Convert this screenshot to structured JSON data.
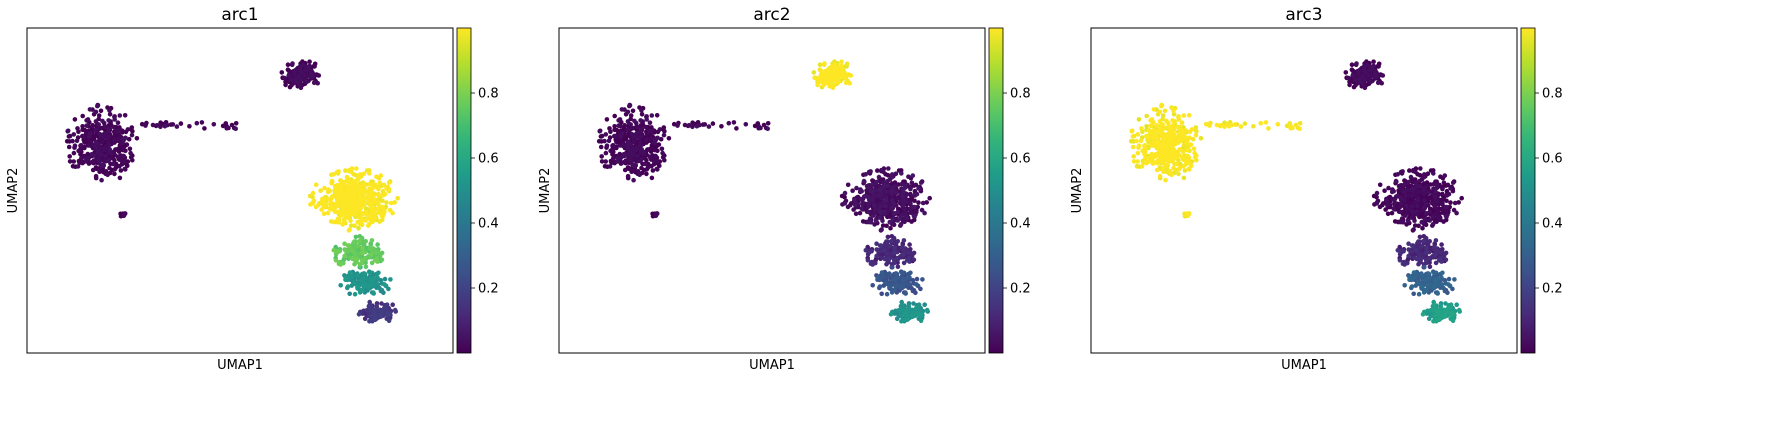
{
  "chart_data": [
    {
      "type": "scatter",
      "title": "arc1",
      "xlabel": "UMAP1",
      "ylabel": "UMAP2",
      "colorbar": {
        "ticks": [
          0.2,
          0.4,
          0.6,
          0.8
        ],
        "range": [
          0.0,
          1.0
        ],
        "colormap": "viridis"
      },
      "clusters": [
        {
          "name": "upper-left blob",
          "value": 0.0
        },
        {
          "name": "top-right blob",
          "value": 0.0
        },
        {
          "name": "right-mass top",
          "value": 1.0
        },
        {
          "name": "right-mass middle",
          "value": 0.75
        },
        {
          "name": "right-mass lower-middle",
          "value": 0.5
        },
        {
          "name": "right-mass bottom",
          "value": 0.15
        }
      ]
    },
    {
      "type": "scatter",
      "title": "arc2",
      "xlabel": "UMAP1",
      "ylabel": "UMAP2",
      "colorbar": {
        "ticks": [
          0.2,
          0.4,
          0.6,
          0.8
        ],
        "range": [
          0.0,
          1.0
        ],
        "colormap": "viridis"
      },
      "clusters": [
        {
          "name": "upper-left blob",
          "value": 0.0
        },
        {
          "name": "top-right blob",
          "value": 1.0
        },
        {
          "name": "right-mass top",
          "value": 0.02
        },
        {
          "name": "right-mass middle",
          "value": 0.1
        },
        {
          "name": "right-mass lower-middle",
          "value": 0.25
        },
        {
          "name": "right-mass bottom",
          "value": 0.5
        }
      ]
    },
    {
      "type": "scatter",
      "title": "arc3",
      "xlabel": "UMAP1",
      "ylabel": "UMAP2",
      "colorbar": {
        "ticks": [
          0.2,
          0.4,
          0.6,
          0.8
        ],
        "range": [
          0.0,
          1.0
        ],
        "colormap": "viridis"
      },
      "clusters": [
        {
          "name": "upper-left blob",
          "value": 1.0
        },
        {
          "name": "top-right blob",
          "value": 0.0
        },
        {
          "name": "right-mass top",
          "value": 0.0
        },
        {
          "name": "right-mass middle",
          "value": 0.1
        },
        {
          "name": "right-mass lower-middle",
          "value": 0.3
        },
        {
          "name": "right-mass bottom",
          "value": 0.55
        }
      ]
    }
  ]
}
